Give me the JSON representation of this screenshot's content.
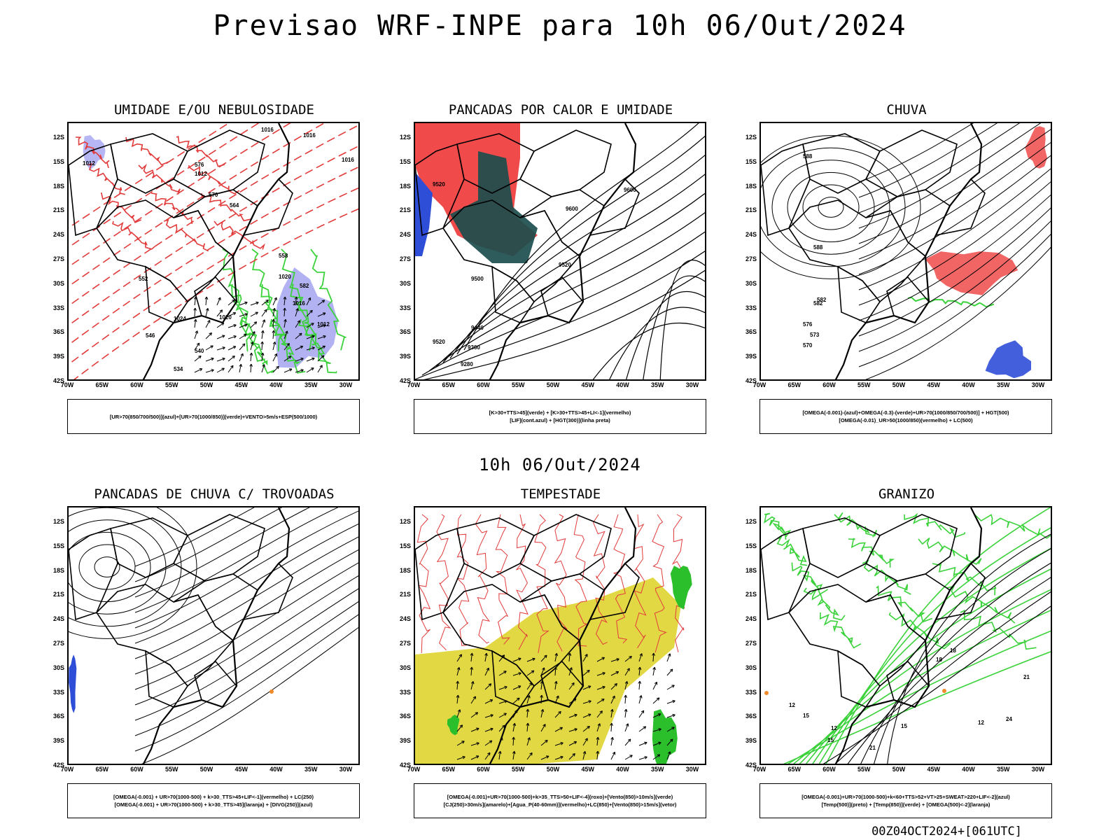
{
  "title": "Previsao WRF-INPE  para 10h 06/Out/2024",
  "mid_title": "10h 06/Out/2024",
  "footer_code": "00Z04OCT2024+[061UTC]",
  "lat_labels": [
    "12S",
    "15S",
    "18S",
    "21S",
    "24S",
    "27S",
    "30S",
    "33S",
    "36S",
    "39S",
    "42S"
  ],
  "lon_labels": [
    "70W",
    "65W",
    "60W",
    "55W",
    "50W",
    "45W",
    "40W",
    "35W",
    "30W"
  ],
  "panels": [
    {
      "id": "umidade",
      "title": "UMIDADE E/OU NEBULOSIDADE",
      "legend": [
        "[UR>70(850/700/500)](azul)+[UR>70(1000/850)](verde)+VENTO>5m/s+ESP(500/1000)"
      ],
      "contour_labels": [
        "1016",
        "1016",
        "1016",
        "1012",
        "1012",
        "1020",
        "1024",
        "1020",
        "1016",
        "1012",
        "576",
        "570",
        "564",
        "558",
        "582",
        "552",
        "546",
        "540",
        "534"
      ]
    },
    {
      "id": "pancadas",
      "title": "PANCADAS POR CALOR E UMIDADE",
      "legend": [
        "[K>30+TTS>45](verde) + [K>30+TTS>45+LI<-1](vermelho)",
        "[LIF](cont.azul) + [HGT(300)](linha preta)"
      ],
      "contour_labels": [
        "9600",
        "9600",
        "9520",
        "9520",
        "9500",
        "9520",
        "9440",
        "9360",
        "9280"
      ]
    },
    {
      "id": "chuva",
      "title": "CHUVA",
      "legend": [
        "[OMEGA(-0.001)-(azul)+OMEGA(-0.3)-(verde)+UR>70(1000/850/700/500)] + HGT(500)",
        "[OMEGA(-0.01)_UR>50(1000/850)(vermelho) + LC(500)"
      ],
      "contour_labels": [
        "588",
        "588",
        "582",
        "582",
        "576",
        "570",
        "573"
      ]
    },
    {
      "id": "trovoadas",
      "title": "PANCADAS DE CHUVA C/ TROVOADAS",
      "legend": [
        "[OMEGA(-0.001) + UR>70(1000-500) + k>30_TTS>45+LIF<-1](vermelho) + LC(250)",
        "[OMEGA(-0.001) + UR>70(1000-500) + k>30_TTS>45](laranja) + [DIVG(250)](azul)"
      ],
      "contour_labels": []
    },
    {
      "id": "tempestade",
      "title": "TEMPESTADE",
      "legend": [
        "[OMEGA(-0.001)+UR>70(1000-500)+k>35_TTS>50+LIF<-4](roxo)+[Vento(850)>10m/s](verde)",
        "[CJ(250)>30m/s](amarelo)+[Agua_P(40-60mm)](vermelho)+LC(850)+[Vento(850)>15m/s](vetor)"
      ],
      "contour_labels": []
    },
    {
      "id": "granizo",
      "title": "GRANIZO",
      "legend": [
        "[OMEGA(-0.001)+UR>70(1000-500)+k<60+TTS>52+VT>25+SWEAT>220+LIF<-2](azul)",
        "[Temp(500)](preto) + [Temp(850)](verde) + [OMEGA(500)<-2](laranja)"
      ],
      "contour_labels": [
        "12",
        "12",
        "15",
        "15",
        "18",
        "18",
        "21",
        "21",
        "24",
        "12",
        "15"
      ]
    }
  ]
}
